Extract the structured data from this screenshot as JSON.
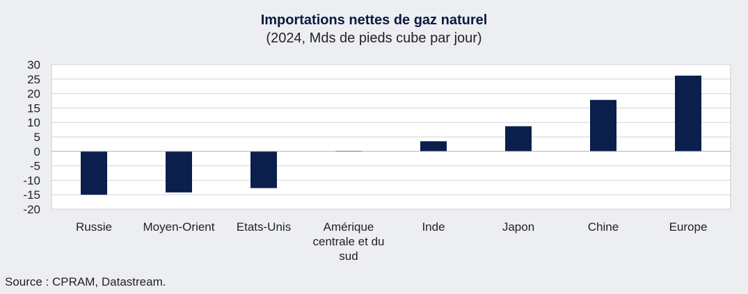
{
  "chart_data": {
    "type": "bar",
    "title": "Importations nettes de gaz naturel",
    "subtitle": "(2024, Mds de pieds cube par jour)",
    "categories": [
      "Russie",
      "Moyen-Orient",
      "Etats-Unis",
      "Amérique centrale et du sud",
      "Inde",
      "Japon",
      "Chine",
      "Europe"
    ],
    "category_lines": [
      [
        "Russie"
      ],
      [
        "Moyen-Orient"
      ],
      [
        "Etats-Unis"
      ],
      [
        "Amérique",
        "centrale et du",
        "sud"
      ],
      [
        "Inde"
      ],
      [
        "Japon"
      ],
      [
        "Chine"
      ],
      [
        "Europe"
      ]
    ],
    "values": [
      -15,
      -14.2,
      -12.7,
      0.2,
      3.5,
      8.7,
      17.8,
      26.2
    ],
    "ylim": [
      -20,
      30
    ],
    "yticks": [
      30,
      25,
      20,
      15,
      10,
      5,
      0,
      -5,
      -10,
      -15,
      -20
    ],
    "grid": true,
    "legend": "none",
    "xlabel": "",
    "ylabel": "",
    "colors": {
      "bar": "#0b1f4d",
      "grid": "#d0d2d6",
      "plot_bg": "#ffffff",
      "page_bg": "#eceef2"
    }
  },
  "source": "Source : CPRAM, Datastream."
}
